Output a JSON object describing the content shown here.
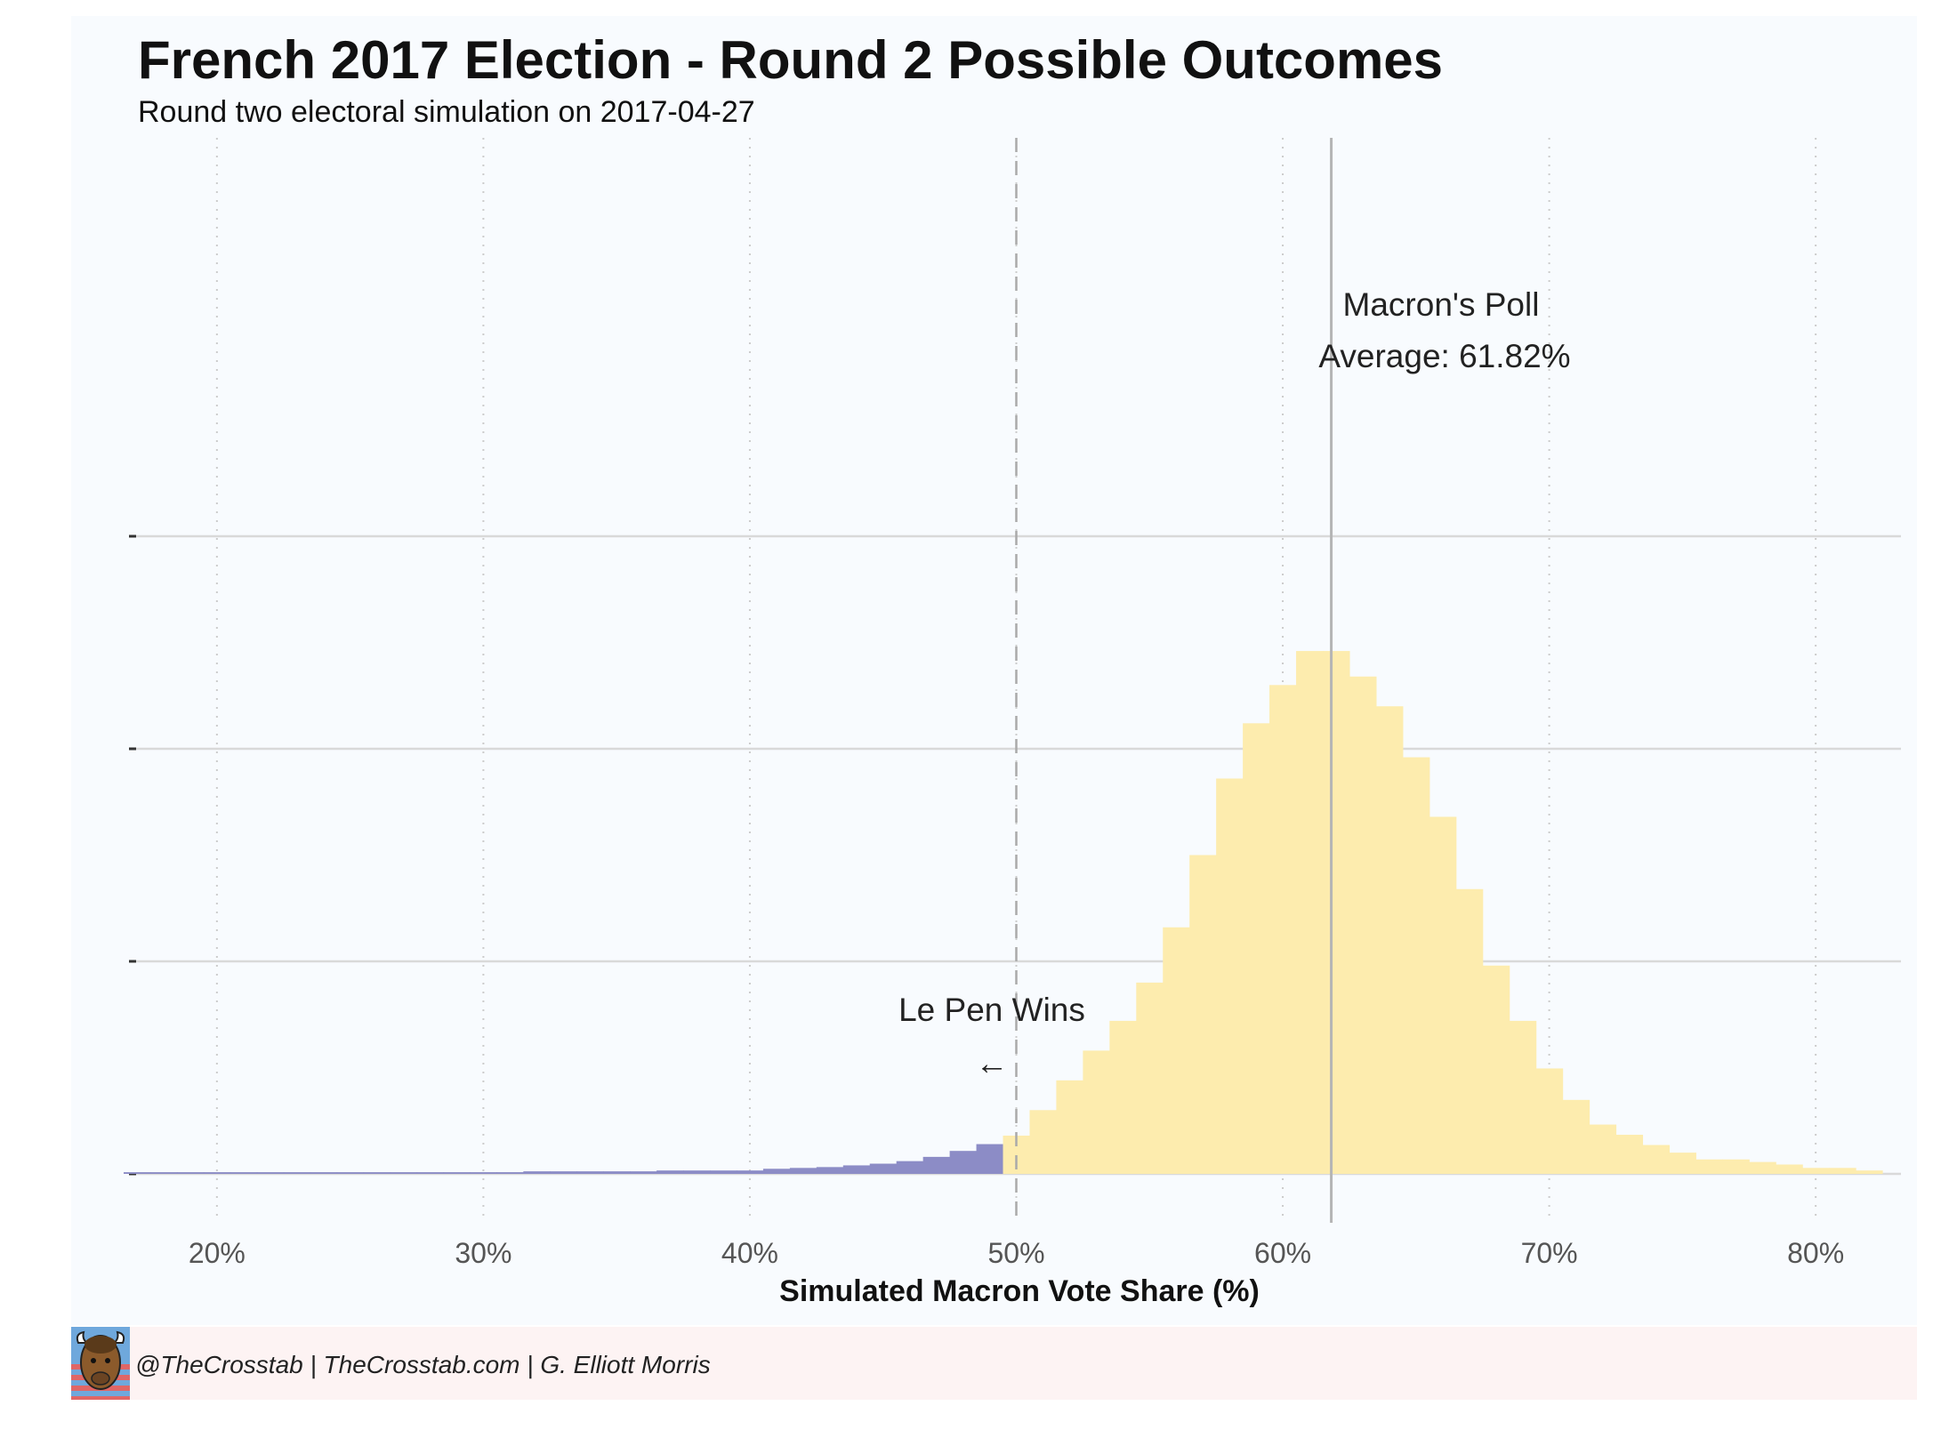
{
  "chart_data": {
    "type": "bar",
    "title": "French 2017 Election - Round 2 Possible Outcomes",
    "subtitle": "Round two electoral simulation on 2017-04-27",
    "xlabel": "Simulated Macron Vote Share (%)",
    "ylabel": "",
    "xlim": [
      16.7,
      83.2
    ],
    "ylim": [
      0,
      1
    ],
    "x_ticks": [
      20,
      30,
      40,
      50,
      60,
      70,
      80
    ],
    "x_tick_labels": [
      "20%",
      "30%",
      "40%",
      "50%",
      "60%",
      "70%",
      "80%"
    ],
    "y_gridlines": [
      0,
      0.25,
      0.5,
      0.75
    ],
    "grid": true,
    "bin_width": 1,
    "series": [
      {
        "x": [
          17,
          18,
          19,
          20,
          21,
          22,
          23,
          24,
          25,
          26,
          27,
          28,
          29,
          30,
          31,
          32,
          33,
          34,
          35,
          36,
          37,
          38,
          39,
          40,
          41,
          42,
          43,
          44,
          45,
          46,
          47,
          48,
          49
        ],
        "values": [
          0.002,
          0.002,
          0.002,
          0.002,
          0.002,
          0.002,
          0.002,
          0.002,
          0.002,
          0.002,
          0.002,
          0.002,
          0.002,
          0.002,
          0.002,
          0.003,
          0.003,
          0.003,
          0.003,
          0.003,
          0.004,
          0.004,
          0.004,
          0.004,
          0.006,
          0.007,
          0.008,
          0.01,
          0.012,
          0.015,
          0.02,
          0.027,
          0.035
        ],
        "color": "#8c8cc6"
      },
      {
        "x": [
          50,
          51,
          52,
          53,
          54,
          55,
          56,
          57,
          58,
          59,
          60,
          61,
          62,
          63,
          64,
          65,
          66,
          67,
          68,
          69,
          70,
          71,
          72,
          73,
          74,
          75,
          76,
          77,
          78,
          79,
          80,
          81,
          82
        ],
        "values": [
          0.045,
          0.075,
          0.11,
          0.145,
          0.18,
          0.225,
          0.29,
          0.375,
          0.465,
          0.53,
          0.575,
          0.615,
          0.615,
          0.585,
          0.55,
          0.49,
          0.42,
          0.335,
          0.245,
          0.18,
          0.124,
          0.087,
          0.058,
          0.046,
          0.034,
          0.025,
          0.017,
          0.017,
          0.014,
          0.011,
          0.007,
          0.007,
          0.004
        ],
        "color": "#fdecae"
      }
    ],
    "reference_lines": [
      {
        "x": 50,
        "style": "dashed"
      },
      {
        "x": 61.82,
        "style": "solid"
      }
    ],
    "annotations": {
      "poll_line1": "Macron's Poll",
      "poll_line2": "Average: 61.82%",
      "lepen_label": "Le Pen Wins",
      "lepen_arrow": "←"
    }
  },
  "footer": {
    "credit": "@TheCrosstab | TheCrosstab.com | G. Elliott Morris",
    "logo_icon": "bison-logo-icon"
  },
  "colors": {
    "background": "#f8fbfe",
    "footer_background": "#fdf3f3",
    "lepen_fill": "#8c8cc6",
    "macron_fill": "#fdecae",
    "grid_major": "#d9d9d9",
    "grid_minor": "#cccccc"
  }
}
